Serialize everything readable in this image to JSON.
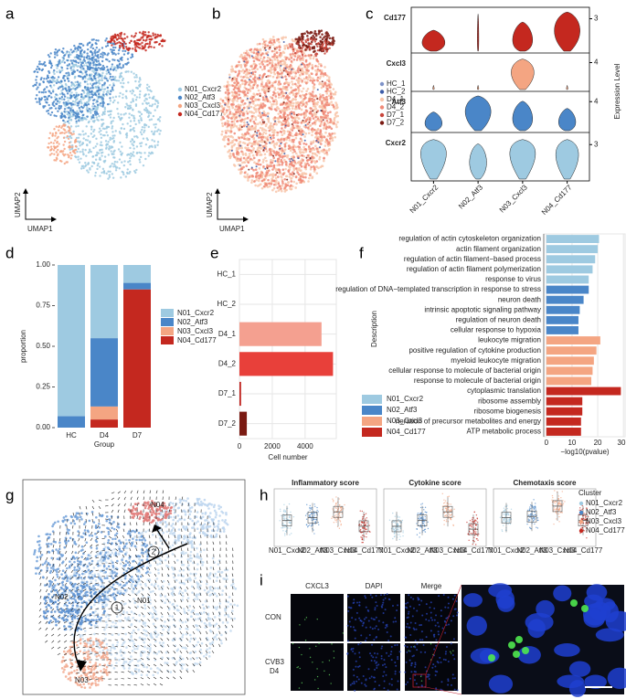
{
  "letters": [
    "a",
    "b",
    "c",
    "d",
    "e",
    "f",
    "g",
    "h",
    "i"
  ],
  "chart_data": [
    {
      "type": "umap",
      "x_label": "UMAP1",
      "y_label": "UMAP2",
      "legend": [
        {
          "name": "N01_Cxcr2",
          "color": "#9ecae1"
        },
        {
          "name": "N02_Atf3",
          "color": "#4a86c8"
        },
        {
          "name": "N03_Cxcl3",
          "color": "#f4a582"
        },
        {
          "name": "N04_Cd177",
          "color": "#c4281f"
        }
      ]
    },
    {
      "type": "umap",
      "x_label": "UMAP1",
      "y_label": "UMAP2",
      "legend": [
        {
          "name": "HC_1",
          "color": "#7f93c8"
        },
        {
          "name": "HC_2",
          "color": "#3c5ca8"
        },
        {
          "name": "D4_1",
          "color": "#f8c5aa"
        },
        {
          "name": "D4_2",
          "color": "#f08a78"
        },
        {
          "name": "D7_1",
          "color": "#c8463c"
        },
        {
          "name": "D7_2",
          "color": "#7a1a12"
        }
      ]
    },
    {
      "type": "violin",
      "genes": [
        "Cd177",
        "Cxcl3",
        "Atf3",
        "Cxcr2"
      ],
      "colors": [
        "#c4281f",
        "#f4a582",
        "#4a86c8",
        "#9ecae1"
      ],
      "categories": [
        "N01_Cxcr2",
        "N02_Atf3",
        "N03_Cxcl3",
        "N04_Cd177"
      ],
      "gene_ticks": [
        3,
        4,
        4,
        3
      ],
      "y_label": "Expression Level"
    },
    {
      "type": "stacked_bar",
      "categories": [
        "HC",
        "D4",
        "D7"
      ],
      "x_label": "Group",
      "y_label": "proportion",
      "series": [
        {
          "name": "N01_Cxcr2",
          "color": "#9ecae1",
          "values": [
            0.93,
            0.45,
            0.11
          ]
        },
        {
          "name": "N02_Atf3",
          "color": "#4a86c8",
          "values": [
            0.07,
            0.42,
            0.04
          ]
        },
        {
          "name": "N03_Cxcl3",
          "color": "#f4a582",
          "values": [
            0,
            0.08,
            0
          ]
        },
        {
          "name": "N04_Cd177",
          "color": "#c4281f",
          "values": [
            0,
            0.05,
            0.85
          ]
        }
      ],
      "ylim": [
        0,
        1
      ],
      "yticks": [
        {
          "value": 0,
          "label": "0.00"
        },
        {
          "value": 0.25,
          "label": "0.25"
        },
        {
          "value": 0.5,
          "label": "0.50"
        },
        {
          "value": 0.75,
          "label": "0.75"
        },
        {
          "value": 1,
          "label": "1.00"
        }
      ]
    },
    {
      "type": "hbar",
      "categories": [
        "HC_1",
        "HC_2",
        "D4_1",
        "D4_2",
        "D7_1",
        "D7_2"
      ],
      "values": [
        0,
        0,
        5000,
        5700,
        100,
        450
      ],
      "colors": [
        "#7f93c8",
        "#3c5ca8",
        "#f4a090",
        "#e8403a",
        "#c0241f",
        "#7a1a12"
      ],
      "xlim": [
        0,
        5900
      ],
      "xticks": [
        0,
        2000,
        4000
      ],
      "x_label": "Cell number",
      "grid": true
    },
    {
      "type": "hbar",
      "x_label": "−log10(pvalue)",
      "y_label": "Description",
      "xlim": [
        -1,
        31
      ],
      "xticks": [
        0,
        10,
        20,
        30
      ],
      "categories": [
        "regulation of actin cytoskeleton organization",
        "actin filament organization",
        "regulation of actin filament−based process",
        "regulation of actin filament polymerization",
        "response to virus",
        "regulation of DNA−templated transcription in response to stress",
        "neuron death",
        "intrinsic apoptotic signaling pathway",
        "regulation of neuron death",
        "cellular response to hypoxia",
        "leukocyte migration",
        "positive regulation of cytokine production",
        "myeloid leukocyte migration",
        "cellular response to molecule of bacterial origin",
        "response to molecule of bacterial origin",
        "cytoplasmic translation",
        "ribosome assembly",
        "ribosome biogenesis",
        "neration of precursor metabolites and energy",
        "ATP metabolic process"
      ],
      "values": [
        20.5,
        20,
        19,
        18,
        16.5,
        16.5,
        14.5,
        13,
        12.5,
        12.5,
        21,
        19.5,
        18.5,
        18,
        17.5,
        29,
        14,
        14,
        13.5,
        13.5
      ],
      "colors": [
        "#9ecae1",
        "#9ecae1",
        "#9ecae1",
        "#9ecae1",
        "#9ecae1",
        "#4a86c8",
        "#4a86c8",
        "#4a86c8",
        "#4a86c8",
        "#4a86c8",
        "#f4a582",
        "#f4a582",
        "#f4a582",
        "#f4a582",
        "#f4a582",
        "#c4281f",
        "#c4281f",
        "#c4281f",
        "#c4281f",
        "#c4281f"
      ],
      "legend": [
        {
          "name": "N01_Cxcr2",
          "color": "#9ecae1"
        },
        {
          "name": "N02_Atf3",
          "color": "#4a86c8"
        },
        {
          "name": "N03_Cxcl3",
          "color": "#f4a582"
        },
        {
          "name": "N04_Cd177",
          "color": "#c4281f"
        }
      ]
    },
    {
      "type": "velocity",
      "labels": [
        "N04",
        "N02",
        "N01",
        "N03"
      ],
      "steps": [
        "1",
        "2"
      ]
    },
    {
      "type": "box",
      "titles": [
        "Inflammatory score",
        "Cytokine score",
        "Chemotaxis score"
      ],
      "categories": [
        "N01_Cxcr2",
        "N02_Atf3",
        "N03_Cxcl3",
        "N04_Cd177"
      ],
      "legend_title": "Cluster",
      "legend": [
        {
          "name": "N01_Cxcr2",
          "color": "#9ecae1"
        },
        {
          "name": "N02_Atf3",
          "color": "#4a86c8"
        },
        {
          "name": "N03_Cxcl3",
          "color": "#f4a582"
        },
        {
          "name": "N04_Cd177",
          "color": "#c4281f"
        }
      ]
    },
    {
      "type": "images",
      "columns": [
        "CXCL3",
        "DAPI",
        "Merge"
      ],
      "column_colors": [
        "#3fae3f",
        "#3a5fc8",
        "#222222"
      ],
      "rows": [
        [
          "CON"
        ],
        [
          "CVB3",
          "D4"
        ]
      ]
    }
  ]
}
